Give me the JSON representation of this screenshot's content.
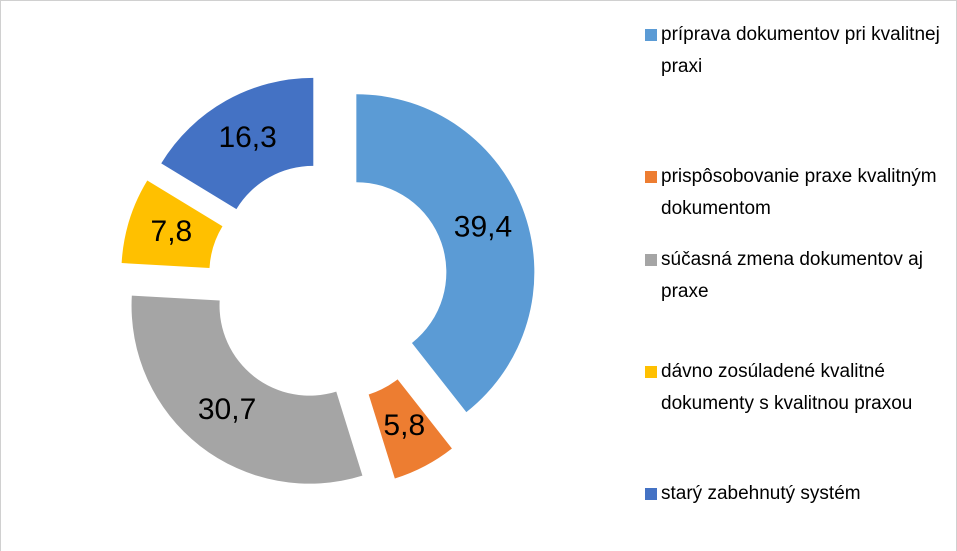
{
  "chart_data": {
    "type": "donut",
    "categories": [
      "príprava dokumentov pri kvalitnej praxi",
      "prispôsobovanie praxe kvalitným dokumentom",
      "súčasná zmena dokumentov aj praxe",
      "dávno zosúladené kvalitné dokumenty s kvalitnou praxou",
      "starý zabehnutý systém"
    ],
    "values": [
      39.4,
      5.8,
      30.7,
      7.8,
      16.3
    ],
    "value_labels": [
      "39,4",
      "5,8",
      "30,7",
      "7,8",
      "16,3"
    ],
    "colors": [
      "#5b9bd5",
      "#ed7d31",
      "#a5a5a5",
      "#ffc000",
      "#4472c4"
    ],
    "legend": "right"
  }
}
